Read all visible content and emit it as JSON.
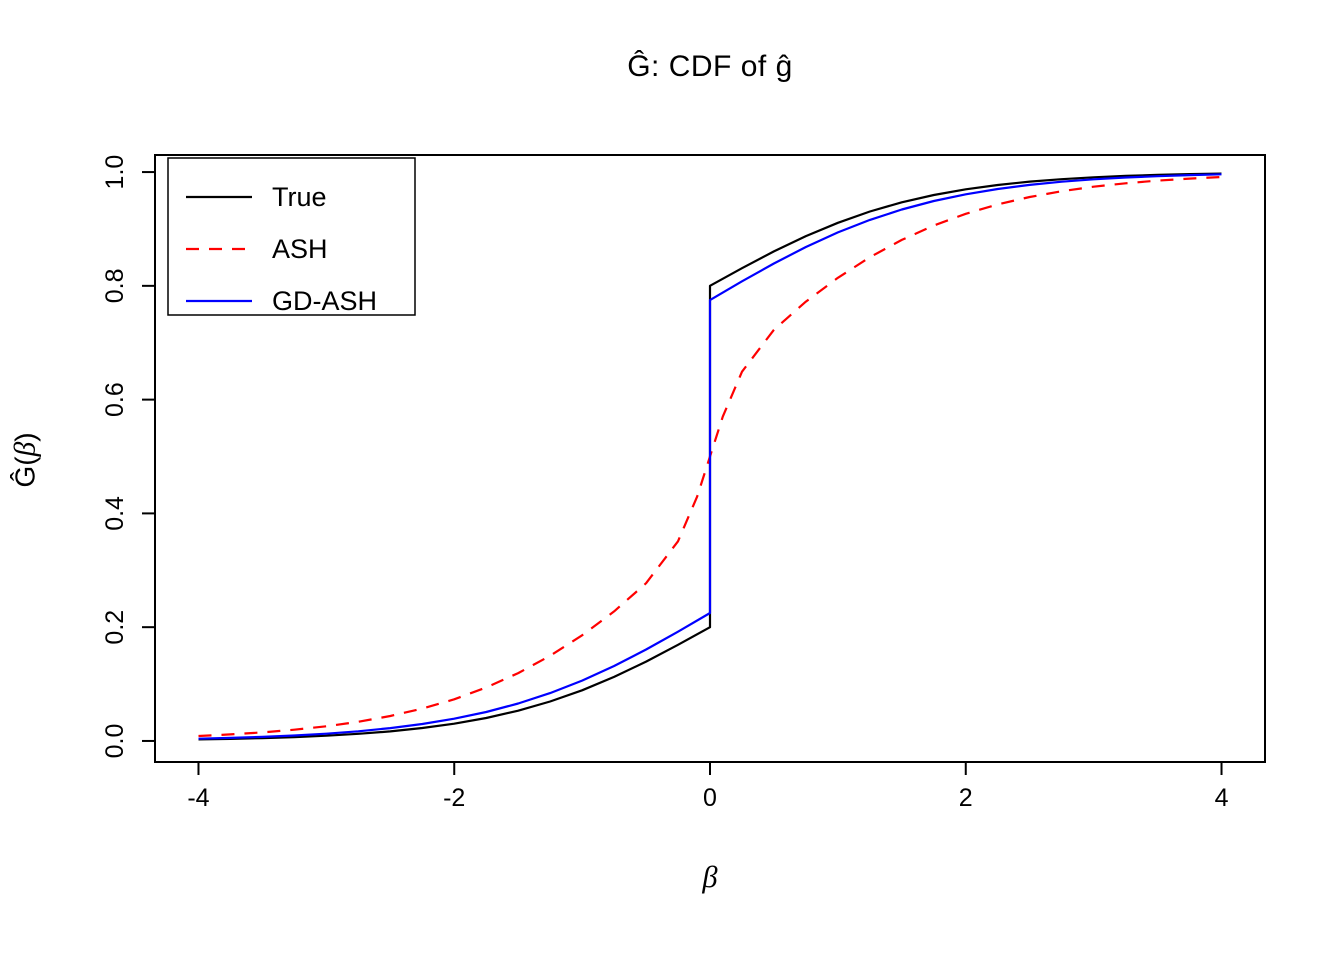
{
  "figure": {
    "title": "Ĝ: CDF of ĝ",
    "xlabel_beta": "β",
    "ylabel_prefix": "Ĝ(",
    "ylabel_beta": "β",
    "ylabel_suffix": ")"
  },
  "chart_data": {
    "type": "line",
    "title": "Ĝ: CDF of ĝ",
    "xlabel": "β",
    "ylabel": "Ĝ(β)",
    "xlim": [
      -4.34,
      4.34
    ],
    "ylim": [
      -0.037,
      1.03
    ],
    "grid": false,
    "x_ticks": {
      "values": [
        -4,
        -2,
        0,
        2,
        4
      ],
      "labels": [
        "-4",
        "-2",
        "0",
        "2",
        "4"
      ]
    },
    "y_ticks": {
      "values": [
        0,
        0.2,
        0.4,
        0.6,
        0.8,
        1
      ],
      "labels": [
        "0.0",
        "0.2",
        "0.4",
        "0.6",
        "0.8",
        "1.0"
      ]
    },
    "legend": {
      "position": "top-left",
      "entries": [
        "True",
        "ASH",
        "GD-ASH"
      ]
    },
    "series": [
      {
        "name": "True",
        "color": "#000000",
        "dash": false,
        "points": [
          [
            -4,
            0.0027
          ],
          [
            -3.75,
            0.0036
          ],
          [
            -3.5,
            0.005
          ],
          [
            -3.25,
            0.0068
          ],
          [
            -3,
            0.0092
          ],
          [
            -2.75,
            0.0125
          ],
          [
            -2.5,
            0.0168
          ],
          [
            -2.25,
            0.0227
          ],
          [
            -2,
            0.0303
          ],
          [
            -1.75,
            0.0404
          ],
          [
            -1.5,
            0.0532
          ],
          [
            -1.25,
            0.0693
          ],
          [
            -1,
            0.0891
          ],
          [
            -0.75,
            0.1126
          ],
          [
            -0.5,
            0.1395
          ],
          [
            -0.25,
            0.169
          ],
          [
            0,
            0.2
          ],
          [
            0,
            0.8
          ],
          [
            0.25,
            0.831
          ],
          [
            0.5,
            0.8605
          ],
          [
            0.75,
            0.8874
          ],
          [
            1,
            0.9109
          ],
          [
            1.25,
            0.9307
          ],
          [
            1.5,
            0.9468
          ],
          [
            1.75,
            0.9596
          ],
          [
            2,
            0.9697
          ],
          [
            2.25,
            0.9773
          ],
          [
            2.5,
            0.9832
          ],
          [
            2.75,
            0.9875
          ],
          [
            3,
            0.9908
          ],
          [
            3.25,
            0.9932
          ],
          [
            3.5,
            0.995
          ],
          [
            3.75,
            0.9964
          ],
          [
            4,
            0.9973
          ]
        ]
      },
      {
        "name": "ASH",
        "color": "#FF0000",
        "dash": true,
        "points": [
          [
            -4,
            0.0087
          ],
          [
            -3.75,
            0.0115
          ],
          [
            -3.5,
            0.015
          ],
          [
            -3.25,
            0.0197
          ],
          [
            -3,
            0.0258
          ],
          [
            -2.75,
            0.0337
          ],
          [
            -2.5,
            0.0439
          ],
          [
            -2.25,
            0.0569
          ],
          [
            -2,
            0.0733
          ],
          [
            -1.75,
            0.0939
          ],
          [
            -1.5,
            0.1192
          ],
          [
            -1.25,
            0.1497
          ],
          [
            -1,
            0.1858
          ],
          [
            -0.75,
            0.2277
          ],
          [
            -0.5,
            0.2773
          ],
          [
            -0.25,
            0.3509
          ],
          [
            -0.1,
            0.4299
          ],
          [
            0,
            0.5
          ],
          [
            0.1,
            0.5701
          ],
          [
            0.25,
            0.6491
          ],
          [
            0.5,
            0.7227
          ],
          [
            0.75,
            0.7723
          ],
          [
            1,
            0.8142
          ],
          [
            1.25,
            0.8503
          ],
          [
            1.5,
            0.8808
          ],
          [
            1.75,
            0.9061
          ],
          [
            2,
            0.9267
          ],
          [
            2.25,
            0.9431
          ],
          [
            2.5,
            0.9561
          ],
          [
            2.75,
            0.9663
          ],
          [
            3,
            0.9742
          ],
          [
            3.25,
            0.9803
          ],
          [
            3.5,
            0.985
          ],
          [
            3.75,
            0.9885
          ],
          [
            4,
            0.9913
          ]
        ]
      },
      {
        "name": "GD-ASH",
        "color": "#0000FF",
        "dash": false,
        "points": [
          [
            -4,
            0.004
          ],
          [
            -3.75,
            0.0054
          ],
          [
            -3.5,
            0.0072
          ],
          [
            -3.25,
            0.0096
          ],
          [
            -3,
            0.0128
          ],
          [
            -2.75,
            0.017
          ],
          [
            -2.5,
            0.0226
          ],
          [
            -2.25,
            0.0298
          ],
          [
            -2,
            0.0391
          ],
          [
            -1.75,
            0.0509
          ],
          [
            -1.5,
            0.0658
          ],
          [
            -1.25,
            0.0841
          ],
          [
            -1,
            0.1061
          ],
          [
            -0.75,
            0.1317
          ],
          [
            -0.5,
            0.1607
          ],
          [
            -0.25,
            0.1921
          ],
          [
            0,
            0.225
          ],
          [
            0,
            0.775
          ],
          [
            0.25,
            0.8079
          ],
          [
            0.5,
            0.8393
          ],
          [
            0.75,
            0.8683
          ],
          [
            1,
            0.8939
          ],
          [
            1.25,
            0.9159
          ],
          [
            1.5,
            0.9342
          ],
          [
            1.75,
            0.9491
          ],
          [
            2,
            0.9609
          ],
          [
            2.25,
            0.9702
          ],
          [
            2.5,
            0.9774
          ],
          [
            2.75,
            0.983
          ],
          [
            3,
            0.9872
          ],
          [
            3.25,
            0.9904
          ],
          [
            3.5,
            0.9928
          ],
          [
            3.75,
            0.9946
          ],
          [
            4,
            0.996
          ]
        ]
      }
    ]
  }
}
